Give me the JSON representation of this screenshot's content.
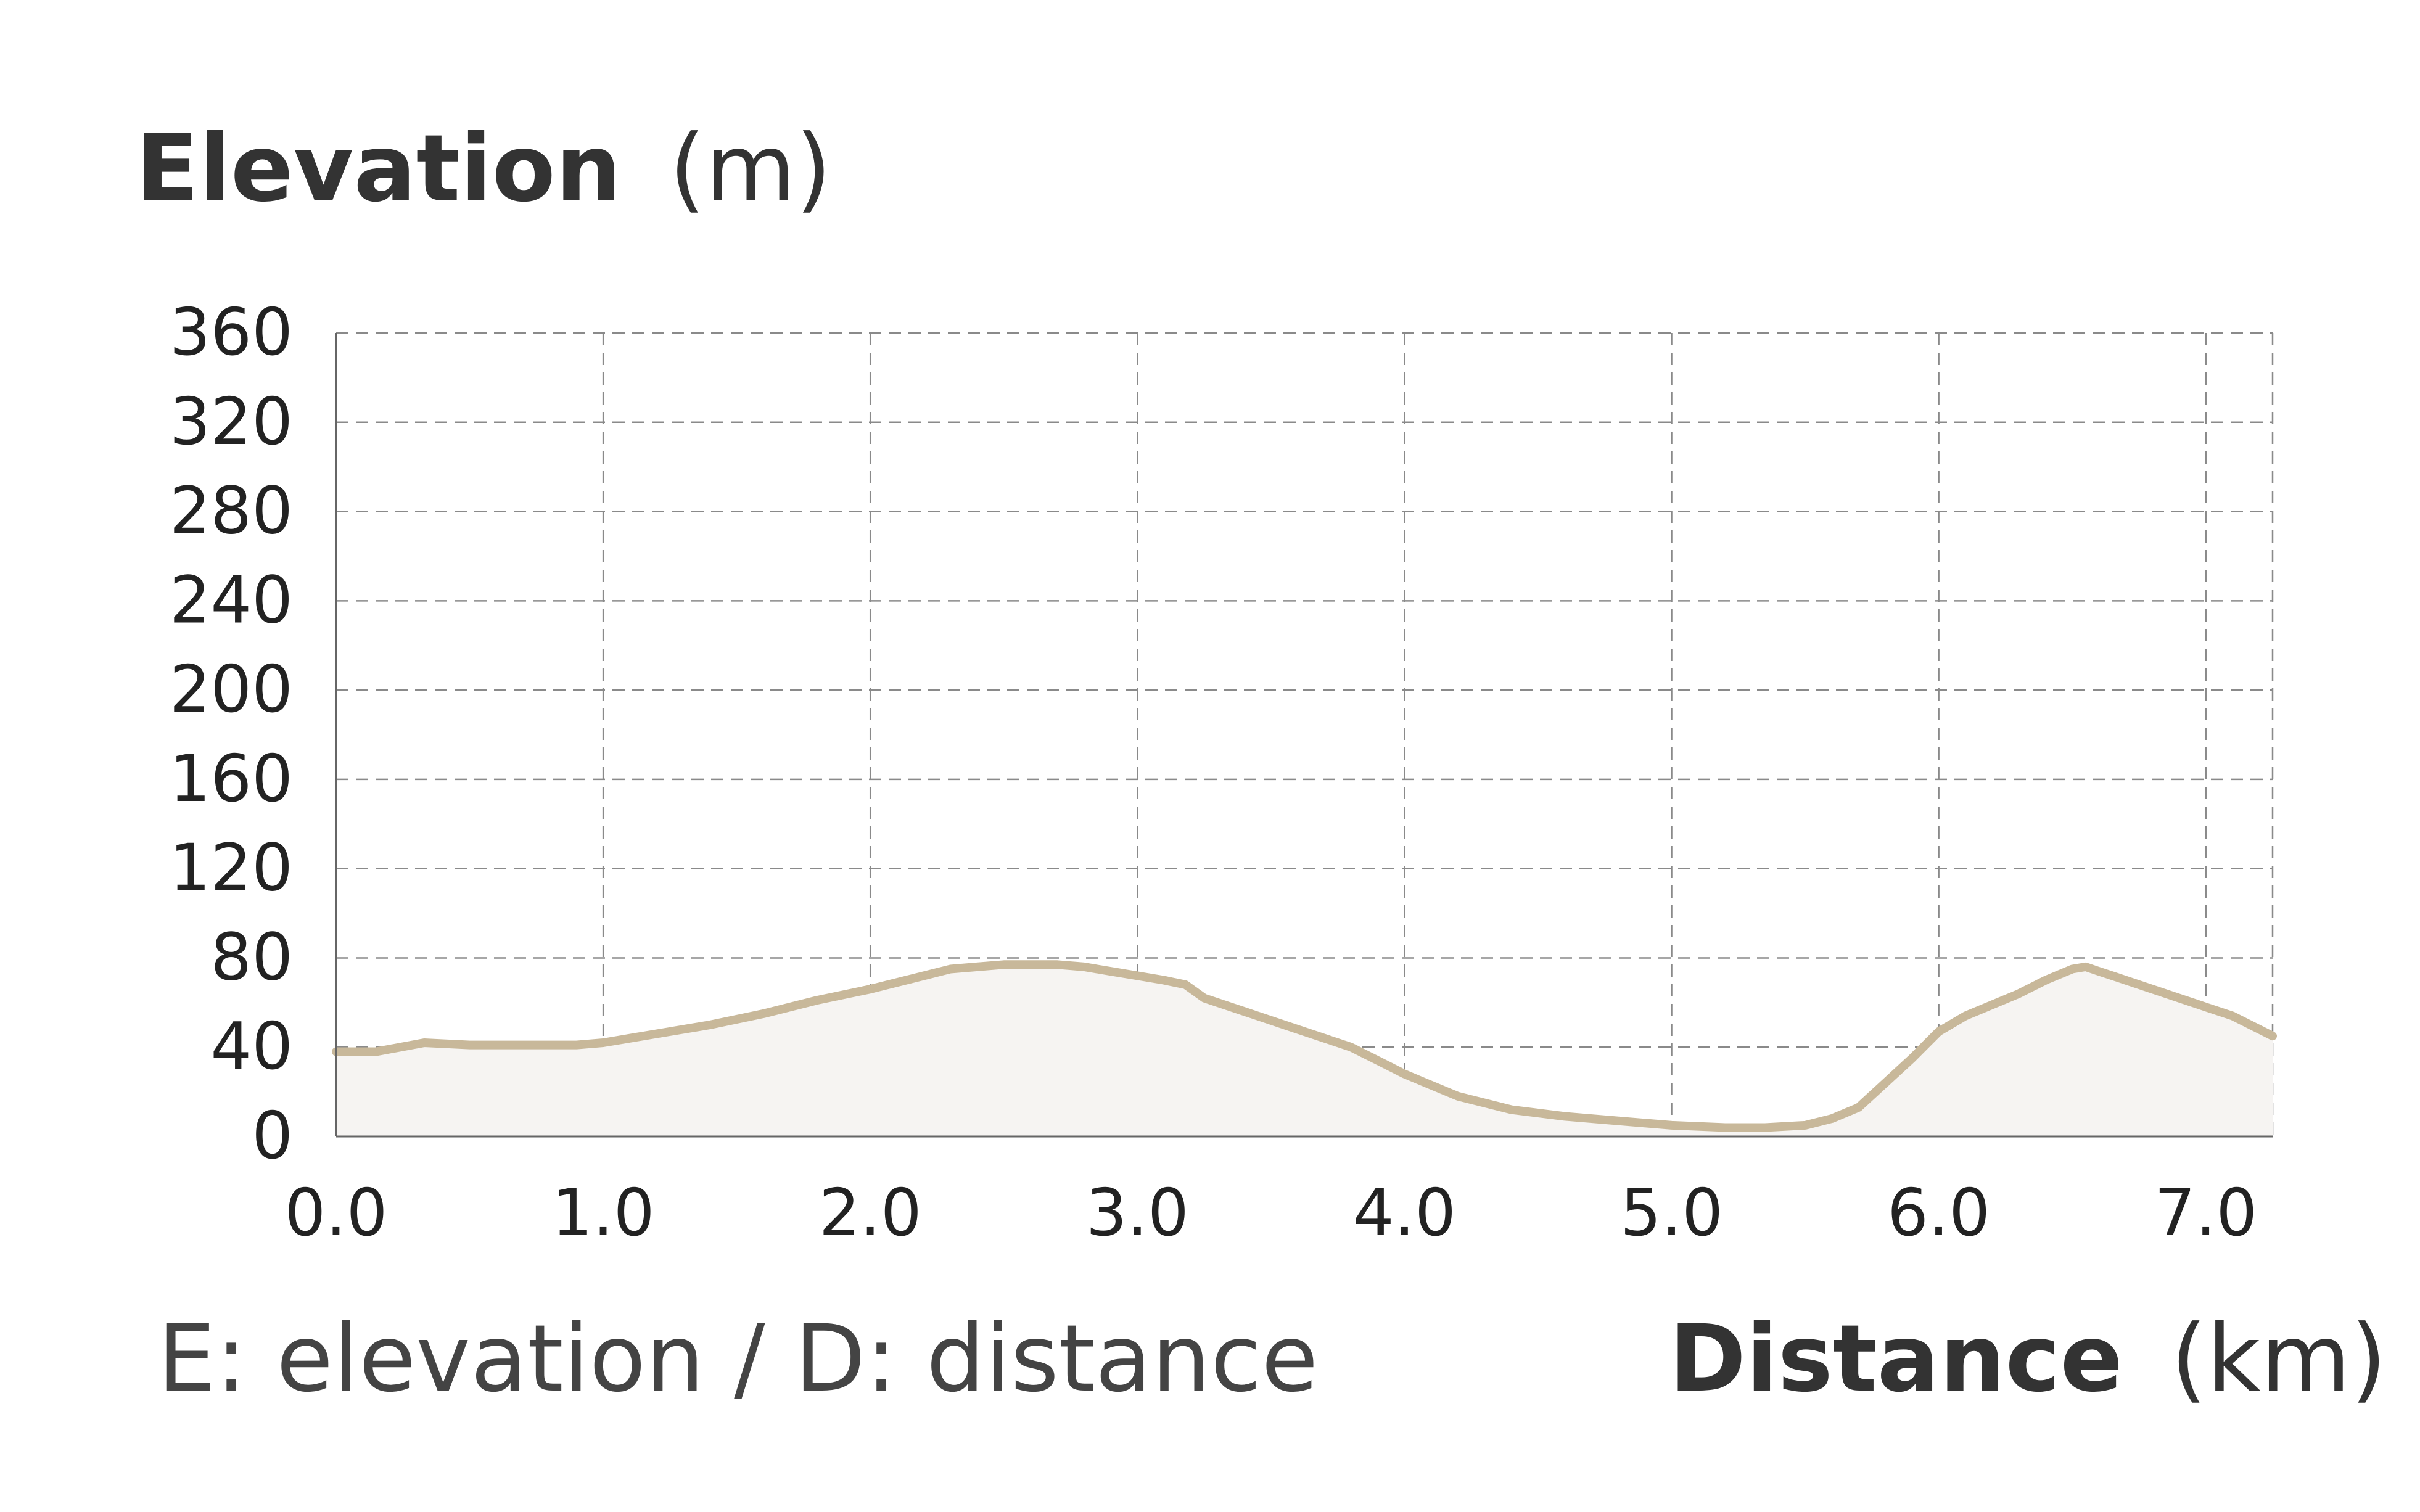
{
  "chart_data": {
    "type": "area",
    "title": "",
    "ylabel": "Elevation",
    "ylabel_unit": "(m)",
    "xlabel": "Distance",
    "xlabel_unit": "(km)",
    "legend_note": "E: elevation / D: distance",
    "xlim": [
      0.0,
      7.25
    ],
    "ylim": [
      0,
      360
    ],
    "x_ticks": [
      0.0,
      1.0,
      2.0,
      3.0,
      4.0,
      5.0,
      6.0,
      7.0
    ],
    "x_tick_labels": [
      "0.0",
      "1.0",
      "2.0",
      "3.0",
      "4.0",
      "5.0",
      "6.0",
      "7.0"
    ],
    "y_ticks": [
      0,
      40,
      80,
      120,
      160,
      200,
      240,
      280,
      320,
      360
    ],
    "y_tick_labels": [
      "0",
      "40",
      "80",
      "120",
      "160",
      "200",
      "240",
      "280",
      "320",
      "360"
    ],
    "grid": true,
    "grid_style": "dashed",
    "line_color": "#c8b89a",
    "fill_color": "#f6f4f2",
    "series": [
      {
        "x": [
          0.0,
          0.15,
          0.33,
          0.5,
          0.7,
          0.9,
          1.0,
          1.2,
          1.4,
          1.6,
          1.8,
          2.0,
          2.2,
          2.3,
          2.4,
          2.5,
          2.6,
          2.7,
          2.8,
          2.9,
          3.0,
          3.1,
          3.18,
          3.25,
          3.4,
          3.6,
          3.8,
          3.9,
          4.0,
          4.1,
          4.2,
          4.4,
          4.6,
          4.8,
          5.0,
          5.2,
          5.35,
          5.5,
          5.6,
          5.7,
          5.8,
          5.9,
          6.0,
          6.1,
          6.3,
          6.4,
          6.5,
          6.55,
          6.6,
          6.7,
          6.8,
          6.9,
          7.0,
          7.1,
          7.25
        ],
        "y": [
          38,
          38,
          42,
          41,
          41,
          41,
          42,
          46,
          50,
          55,
          61,
          66,
          72,
          75,
          76,
          77,
          77,
          77,
          76,
          74,
          72,
          70,
          68,
          62,
          56,
          48,
          40,
          34,
          28,
          23,
          18,
          12,
          9,
          7,
          5,
          4,
          4,
          5,
          8,
          13,
          24,
          35,
          47,
          54,
          64,
          70,
          75,
          76,
          74,
          70,
          66,
          62,
          58,
          54,
          45
        ]
      }
    ]
  }
}
